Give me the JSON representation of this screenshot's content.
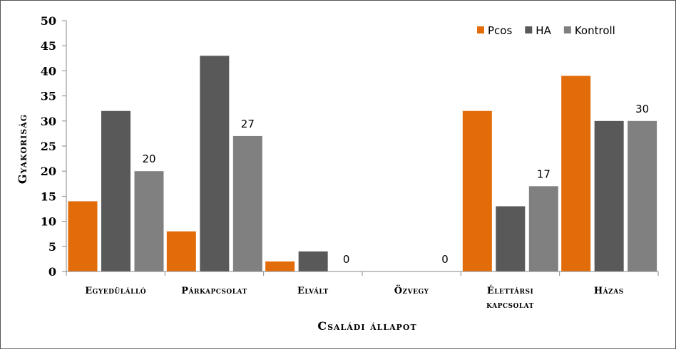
{
  "chart_data": {
    "type": "bar",
    "title": "",
    "xlabel": "Családi állapot",
    "ylabel": "Gyakoriság",
    "ylim": [
      0,
      50
    ],
    "yticks": [
      0,
      5,
      10,
      15,
      20,
      25,
      30,
      35,
      40,
      45,
      50
    ],
    "categories": [
      [
        "Egyedülálló"
      ],
      [
        "Párkapcsolat"
      ],
      [
        "Elvált"
      ],
      [
        "Özvegy"
      ],
      [
        "Élettársi",
        "kapcsolat"
      ],
      [
        "Házas"
      ]
    ],
    "series": [
      {
        "name": "Pcos",
        "color": "#E36C0A",
        "values": [
          14,
          8,
          2,
          0,
          32,
          39
        ]
      },
      {
        "name": "HA",
        "color": "#595959",
        "values": [
          32,
          43,
          4,
          0,
          13,
          30
        ]
      },
      {
        "name": "Kontroll",
        "color": "#808080",
        "values": [
          20,
          27,
          0,
          0,
          17,
          30
        ]
      }
    ],
    "data_labels": {
      "series": "Kontroll"
    },
    "legend": {
      "position": "top-right"
    },
    "grid": false
  }
}
